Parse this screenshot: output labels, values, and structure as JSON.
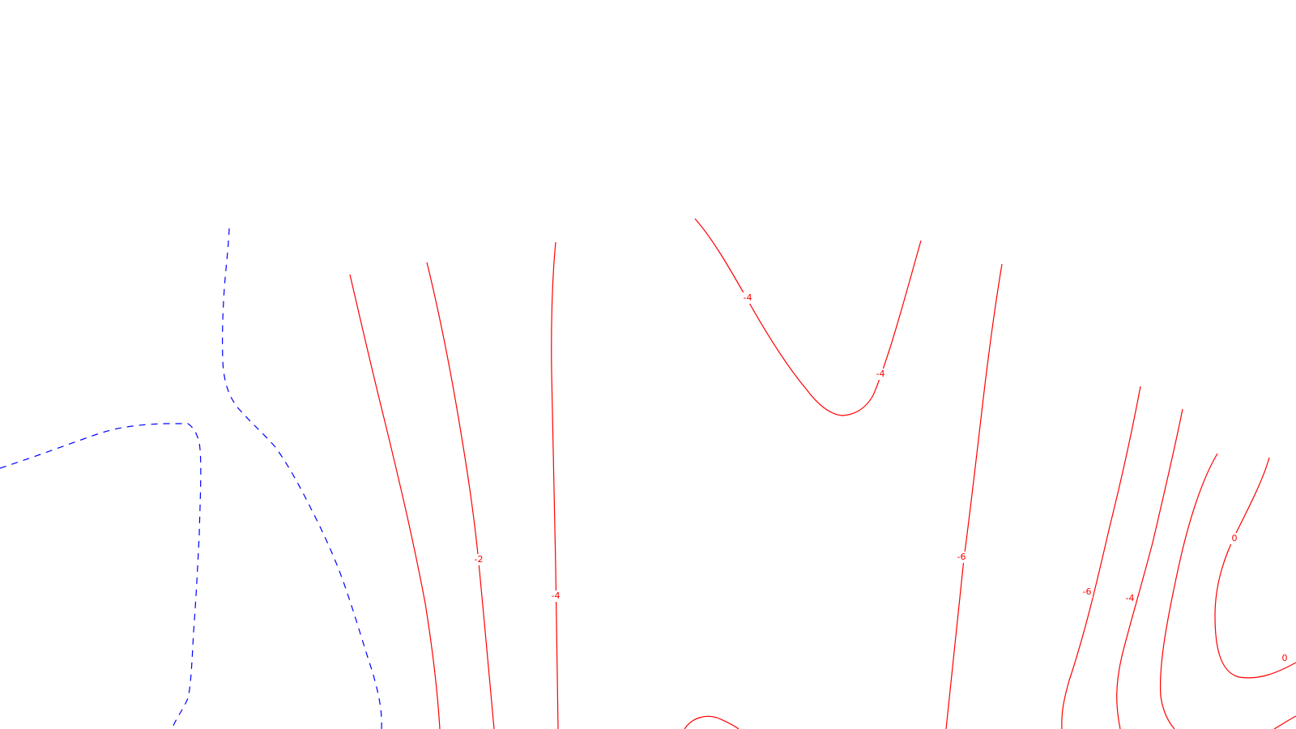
{
  "map": {
    "colors": {
      "background": "#ffffff",
      "contour_solid": "#ff0000",
      "contour_dashed": "#0000ff",
      "label_text": "#ff0000"
    },
    "contour_labels": [
      {
        "id": "label-neg2-a",
        "text": "-2"
      },
      {
        "id": "label-neg4-a",
        "text": "-4"
      },
      {
        "id": "label-neg4-b",
        "text": "-4"
      },
      {
        "id": "label-neg4-c",
        "text": "-4"
      },
      {
        "id": "label-neg6-a",
        "text": "-6"
      },
      {
        "id": "label-neg6-b",
        "text": "-6"
      },
      {
        "id": "label-neg4-d",
        "text": "-4"
      },
      {
        "id": "label-zero-a",
        "text": "0"
      },
      {
        "id": "label-zero-b",
        "text": "0"
      }
    ]
  }
}
